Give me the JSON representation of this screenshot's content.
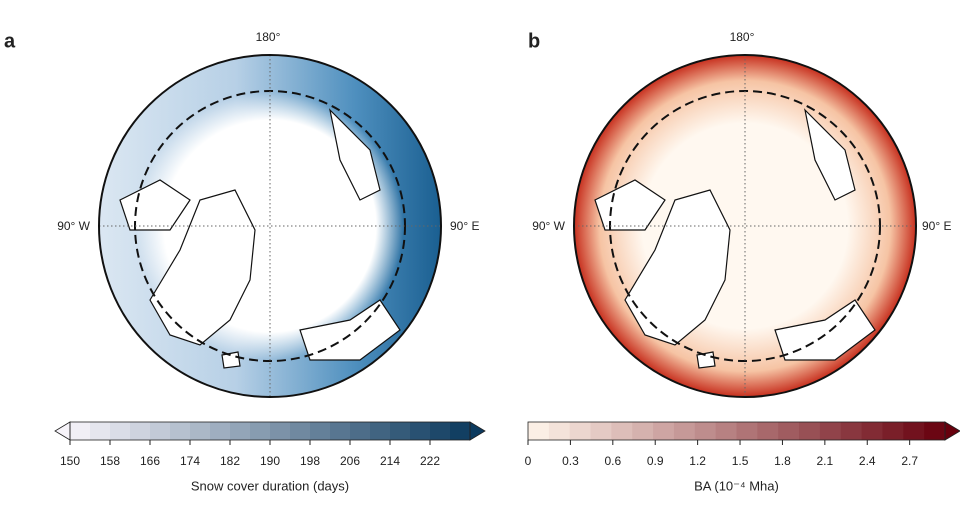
{
  "panels": [
    {
      "label": "a",
      "top_label": "180°",
      "left_label": "90° W",
      "right_label": "90° E",
      "colorbar": {
        "label": "Snow cover duration (days)",
        "lim": [
          150,
          230
        ],
        "ticks": [
          150,
          158,
          166,
          174,
          182,
          190,
          198,
          206,
          214,
          222
        ],
        "colors": [
          "#f7f4fa",
          "#0c3a5e"
        ],
        "extend_left": true,
        "extend_right": true
      }
    },
    {
      "label": "b",
      "top_label": "180°",
      "left_label": "90° W",
      "right_label": "90° E",
      "colorbar": {
        "label": "BA (10⁻⁴ Mha)",
        "lim": [
          0,
          2.95
        ],
        "ticks": [
          0,
          0.3,
          0.6,
          0.9,
          1.2,
          1.5,
          1.8,
          2.1,
          2.4,
          2.7
        ],
        "colors": [
          "#fff5eb",
          "#67000d"
        ],
        "extend_left": false,
        "extend_right": true
      }
    }
  ]
}
